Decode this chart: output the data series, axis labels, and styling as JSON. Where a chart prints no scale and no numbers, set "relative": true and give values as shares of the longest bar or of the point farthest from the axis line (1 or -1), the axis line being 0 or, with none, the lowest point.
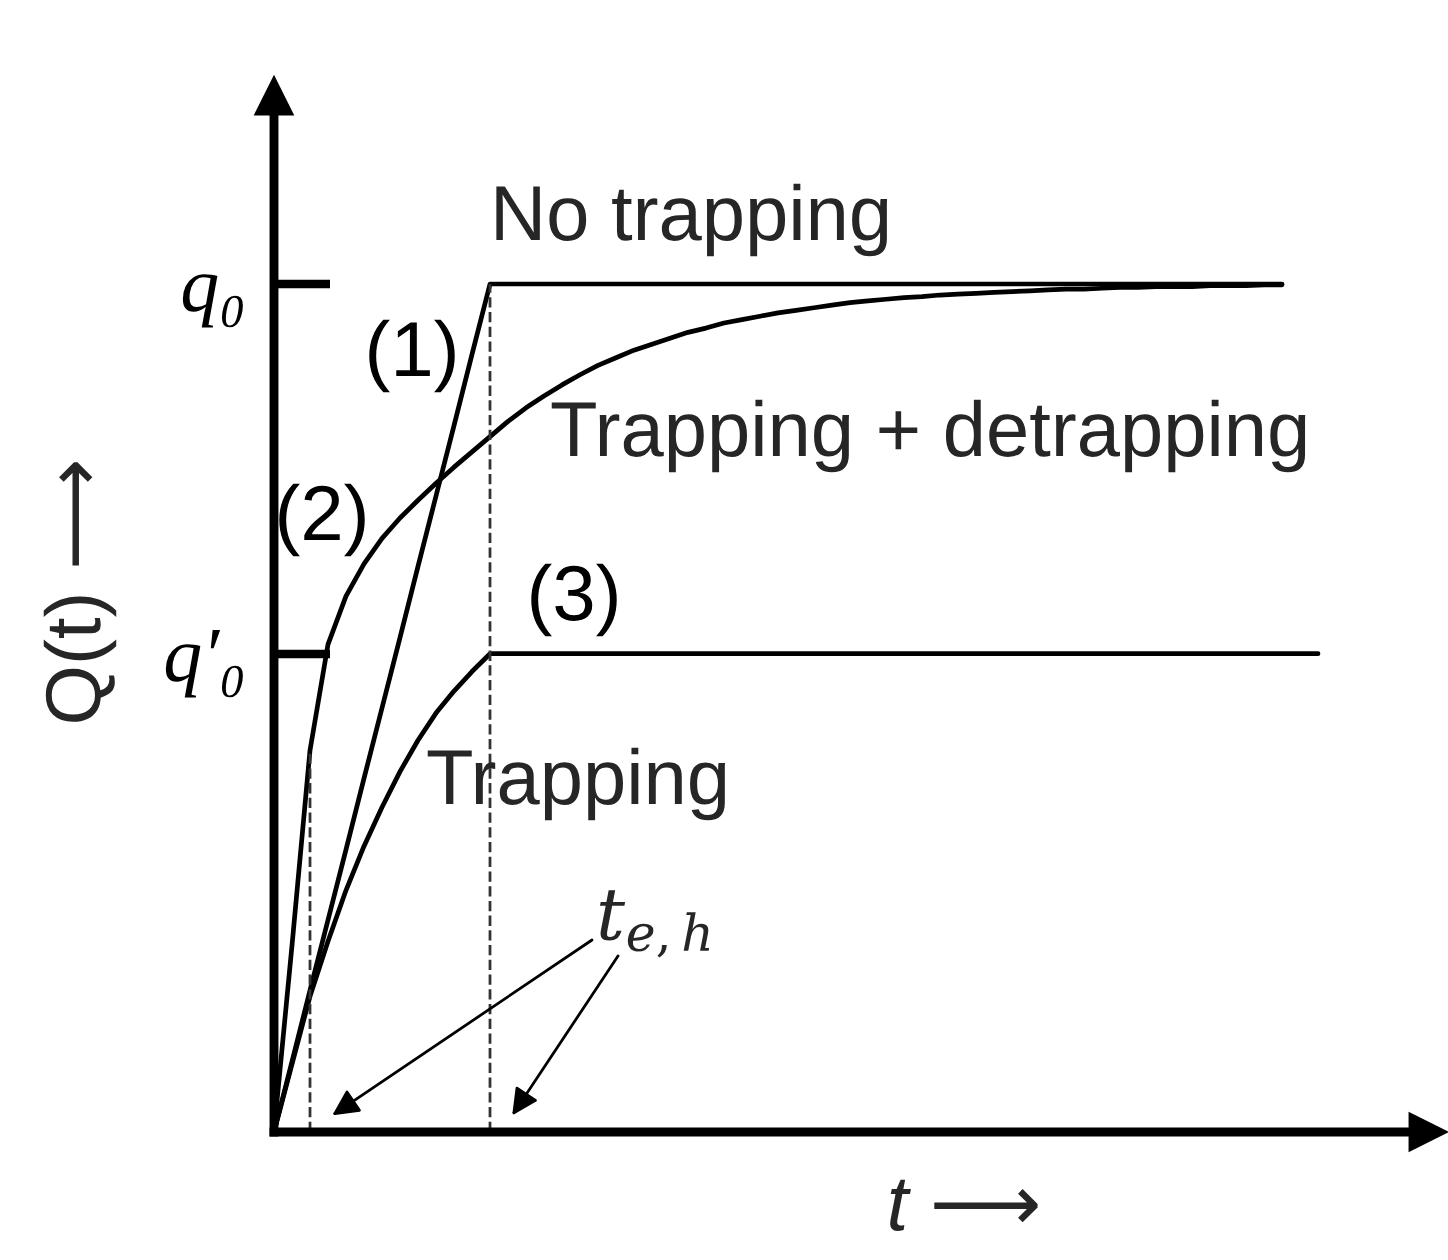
{
  "chart_data": {
    "type": "line",
    "relative": true,
    "xlabel": "t ⟶",
    "ylabel": "Q(t) ⟶",
    "categories": [
      null,
      null,
      null,
      null,
      null,
      null,
      null,
      null,
      null,
      null,
      null,
      null,
      null,
      null,
      null,
      null,
      null,
      null,
      null,
      null,
      null,
      null,
      null,
      null,
      null,
      null,
      null,
      null,
      null,
      null,
      null,
      null,
      null,
      null,
      null,
      null,
      null,
      null,
      null,
      null,
      null,
      null,
      null,
      null,
      null,
      null,
      null,
      null,
      null,
      null,
      null,
      null,
      null,
      null,
      null,
      null,
      null,
      null,
      null
    ],
    "series": [
      {
        "name": "(1)",
        "color": "#000000",
        "values": [
          0,
          0.083,
          0.167,
          0.25,
          0.333,
          0.417,
          0.5,
          0.583,
          0.667,
          0.75,
          0.833,
          0.917,
          1,
          1,
          1,
          1,
          1,
          1,
          1,
          1,
          1,
          1,
          1,
          1,
          1,
          1,
          1,
          1,
          1,
          1,
          1,
          1,
          1,
          1,
          1,
          1,
          1,
          1,
          1,
          1,
          1,
          1,
          1,
          1,
          1,
          1,
          1,
          1,
          1,
          1,
          1,
          1,
          1,
          1,
          1,
          1,
          1,
          null,
          null
        ]
      },
      {
        "name": "(2)",
        "color": "#000000",
        "values": [
          0,
          0.22,
          0.45,
          0.575,
          0.632,
          0.67,
          0.7,
          0.724,
          0.745,
          0.765,
          0.784,
          0.802,
          0.82,
          0.838,
          0.854,
          0.868,
          0.881,
          0.893,
          0.904,
          0.913,
          0.922,
          0.929,
          0.936,
          0.943,
          0.948,
          0.954,
          0.958,
          0.962,
          0.966,
          0.969,
          0.972,
          0.975,
          0.978,
          0.98,
          0.982,
          0.984,
          0.985,
          0.987,
          0.988,
          0.989,
          0.99,
          0.991,
          0.992,
          0.993,
          0.994,
          0.994,
          0.995,
          0.996,
          0.996,
          0.997,
          0.997,
          0.997,
          0.998,
          0.998,
          0.998,
          0.999,
          0.999,
          null,
          null
        ]
      },
      {
        "name": "(3)",
        "color": "#000000",
        "values": [
          0,
          0.08,
          0.16,
          0.225,
          0.285,
          0.337,
          0.383,
          0.425,
          0.462,
          0.494,
          0.52,
          0.543,
          0.564,
          0.564,
          0.564,
          0.564,
          0.564,
          0.564,
          0.564,
          0.564,
          0.564,
          0.564,
          0.564,
          0.564,
          0.564,
          0.564,
          0.564,
          0.564,
          0.564,
          0.564,
          0.564,
          0.564,
          0.564,
          0.564,
          0.564,
          0.564,
          0.564,
          0.564,
          0.564,
          0.564,
          0.564,
          0.564,
          0.564,
          0.564,
          0.564,
          0.564,
          0.564,
          0.564,
          0.564,
          0.564,
          0.564,
          0.564,
          0.564,
          0.564,
          0.564,
          0.564,
          0.564,
          0.564,
          0.564
        ]
      }
    ],
    "annotations": [
      "q₀",
      "q′₀",
      "No trapping",
      "Trapping + detrapping",
      "Trapping",
      "t$_{e,h}$"
    ]
  }
}
